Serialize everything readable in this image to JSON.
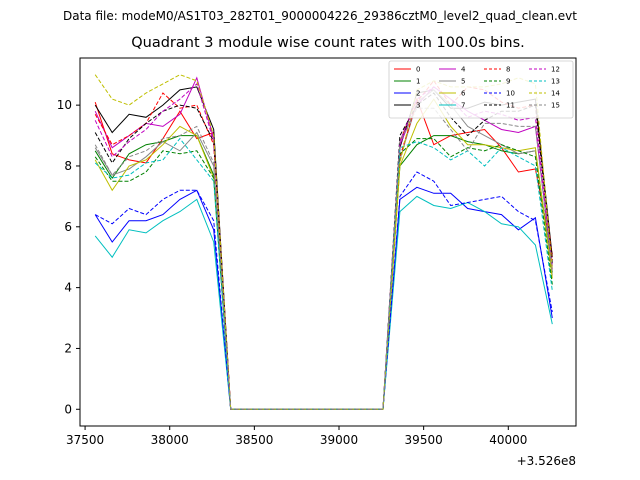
{
  "suptitle": "Data file: modeM0/AS1T03_282T01_9000004226_29386cztM0_level2_quad_clean.evt",
  "chart_data": {
    "type": "line",
    "title": "Quadrant 3 module wise count rates with 100.0s bins.",
    "xlabel": "",
    "ylabel": "",
    "x_offset_label": "+3.526e8",
    "xlim": [
      37470,
      40400
    ],
    "ylim": [
      -0.55,
      11.55
    ],
    "xticks": [
      37500,
      38000,
      38500,
      39000,
      39500,
      40000
    ],
    "yticks": [
      0,
      2,
      4,
      6,
      8,
      10
    ],
    "grid": false,
    "legend_position": "top-right",
    "legend_columns": 4,
    "x": [
      37560,
      37660,
      37760,
      37860,
      37960,
      38060,
      38160,
      38260,
      38360,
      38460,
      38560,
      38660,
      38760,
      38860,
      38960,
      39060,
      39160,
      39260,
      39360,
      39460,
      39560,
      39660,
      39760,
      39860,
      39960,
      40060,
      40160,
      40260
    ],
    "series": [
      {
        "name": "0",
        "color": "#ff0000",
        "dash": "solid",
        "values": [
          10.1,
          8.4,
          8.2,
          8.1,
          8.9,
          9.8,
          8.9,
          9.1,
          0,
          0,
          0,
          0,
          0,
          0,
          0,
          0,
          0,
          0,
          8.8,
          10.2,
          8.7,
          9.0,
          9.1,
          9.2,
          8.6,
          7.8,
          7.9,
          5.1
        ]
      },
      {
        "name": "1",
        "color": "#008000",
        "dash": "solid",
        "values": [
          8.5,
          7.6,
          8.4,
          8.7,
          8.8,
          9.0,
          9.0,
          7.7,
          0,
          0,
          0,
          0,
          0,
          0,
          0,
          0,
          0,
          0,
          8.0,
          8.7,
          9.0,
          9.0,
          8.8,
          8.7,
          8.5,
          8.4,
          8.5,
          4.5
        ]
      },
      {
        "name": "2",
        "color": "#0000ff",
        "dash": "solid",
        "values": [
          6.4,
          5.5,
          6.2,
          6.2,
          6.4,
          6.9,
          7.2,
          5.9,
          0,
          0,
          0,
          0,
          0,
          0,
          0,
          0,
          0,
          0,
          6.9,
          7.3,
          7.1,
          7.1,
          6.6,
          6.5,
          6.4,
          5.9,
          6.3,
          3.0
        ]
      },
      {
        "name": "3",
        "color": "#000000",
        "dash": "solid",
        "values": [
          10.0,
          9.1,
          9.7,
          9.6,
          10.0,
          10.5,
          10.6,
          9.2,
          0,
          0,
          0,
          0,
          0,
          0,
          0,
          0,
          0,
          0,
          8.6,
          10.4,
          10.5,
          9.9,
          9.9,
          10.1,
          10.0,
          10.1,
          10.2,
          5.0
        ]
      },
      {
        "name": "4",
        "color": "#c000c0",
        "dash": "solid",
        "values": [
          9.8,
          8.6,
          9.0,
          9.4,
          9.3,
          9.7,
          10.9,
          8.9,
          0,
          0,
          0,
          0,
          0,
          0,
          0,
          0,
          0,
          0,
          8.7,
          10.0,
          10.6,
          10.2,
          9.8,
          9.5,
          9.2,
          9.1,
          9.3,
          4.6
        ]
      },
      {
        "name": "5",
        "color": "#888888",
        "dash": "solid",
        "values": [
          8.6,
          7.7,
          7.9,
          8.3,
          8.8,
          8.5,
          9.1,
          8.0,
          0,
          0,
          0,
          0,
          0,
          0,
          0,
          0,
          0,
          0,
          8.2,
          10.1,
          10.5,
          10.0,
          9.3,
          9.0,
          8.7,
          8.4,
          8.5,
          4.4
        ]
      },
      {
        "name": "6",
        "color": "#bfbf00",
        "dash": "solid",
        "values": [
          8.2,
          7.2,
          8.0,
          8.2,
          8.7,
          9.3,
          9.0,
          7.6,
          0,
          0,
          0,
          0,
          0,
          0,
          0,
          0,
          0,
          0,
          8.0,
          9.4,
          10.2,
          9.3,
          8.7,
          8.7,
          8.6,
          8.5,
          8.6,
          4.3
        ]
      },
      {
        "name": "7",
        "color": "#00bfbf",
        "dash": "solid",
        "values": [
          5.7,
          5.0,
          5.9,
          5.8,
          6.2,
          6.5,
          6.9,
          5.5,
          0,
          0,
          0,
          0,
          0,
          0,
          0,
          0,
          0,
          0,
          6.5,
          7.0,
          6.7,
          6.6,
          6.8,
          6.5,
          6.1,
          6.0,
          5.4,
          2.8
        ]
      },
      {
        "name": "8",
        "color": "#ff0000",
        "dash": "dashed",
        "values": [
          9.7,
          8.7,
          9.0,
          9.4,
          10.4,
          9.9,
          10.0,
          8.7,
          0,
          0,
          0,
          0,
          0,
          0,
          0,
          0,
          0,
          0,
          8.3,
          10.1,
          10.8,
          10.0,
          10.6,
          10.5,
          10.1,
          9.9,
          10.0,
          4.9
        ]
      },
      {
        "name": "9",
        "color": "#008000",
        "dash": "dashed",
        "values": [
          8.3,
          7.5,
          7.5,
          7.8,
          8.5,
          8.4,
          8.5,
          7.6,
          0,
          0,
          0,
          0,
          0,
          0,
          0,
          0,
          0,
          0,
          8.4,
          8.9,
          8.9,
          8.3,
          8.6,
          8.5,
          8.7,
          8.5,
          8.3,
          4.1
        ]
      },
      {
        "name": "10",
        "color": "#0000ff",
        "dash": "dashed",
        "values": [
          6.4,
          6.1,
          6.6,
          6.4,
          6.9,
          7.2,
          7.2,
          6.2,
          0,
          0,
          0,
          0,
          0,
          0,
          0,
          0,
          0,
          0,
          7.0,
          7.8,
          7.5,
          6.7,
          6.8,
          6.9,
          7.0,
          6.5,
          6.2,
          3.2
        ]
      },
      {
        "name": "11",
        "color": "#000000",
        "dash": "dashed",
        "values": [
          9.1,
          8.1,
          8.9,
          9.4,
          9.8,
          10.0,
          9.9,
          8.8,
          0,
          0,
          0,
          0,
          0,
          0,
          0,
          0,
          0,
          0,
          9.0,
          10.0,
          10.4,
          9.6,
          9.0,
          9.5,
          9.8,
          9.8,
          10.0,
          4.8
        ]
      },
      {
        "name": "12",
        "color": "#c000c0",
        "dash": "dashed",
        "values": [
          9.5,
          8.3,
          8.8,
          9.2,
          9.8,
          10.2,
          10.7,
          8.8,
          0,
          0,
          0,
          0,
          0,
          0,
          0,
          0,
          0,
          0,
          8.8,
          10.2,
          10.6,
          10.2,
          9.6,
          9.8,
          9.7,
          9.5,
          9.6,
          4.7
        ]
      },
      {
        "name": "13",
        "color": "#00bfbf",
        "dash": "dashed",
        "values": [
          8.1,
          7.6,
          7.7,
          8.1,
          8.2,
          8.9,
          8.2,
          7.5,
          0,
          0,
          0,
          0,
          0,
          0,
          0,
          0,
          0,
          0,
          8.6,
          8.8,
          8.6,
          8.2,
          8.5,
          8.0,
          8.6,
          8.3,
          8.0,
          3.9
        ]
      },
      {
        "name": "14",
        "color": "#bfbf00",
        "dash": "dashed",
        "values": [
          11.0,
          10.2,
          10.0,
          10.4,
          10.7,
          11.0,
          10.8,
          9.0,
          0,
          0,
          0,
          0,
          0,
          0,
          0,
          0,
          0,
          0,
          8.1,
          10.5,
          10.8,
          10.6,
          10.6,
          10.6,
          10.7,
          10.9,
          10.7,
          4.6
        ]
      },
      {
        "name": "15",
        "color": "#888888",
        "dash": "dashed",
        "values": [
          8.7,
          7.7,
          8.3,
          8.5,
          8.9,
          9.0,
          9.3,
          8.1,
          0,
          0,
          0,
          0,
          0,
          0,
          0,
          0,
          0,
          0,
          8.8,
          9.9,
          9.9,
          9.2,
          8.5,
          9.4,
          9.4,
          9.3,
          9.3,
          4.5
        ]
      }
    ]
  }
}
